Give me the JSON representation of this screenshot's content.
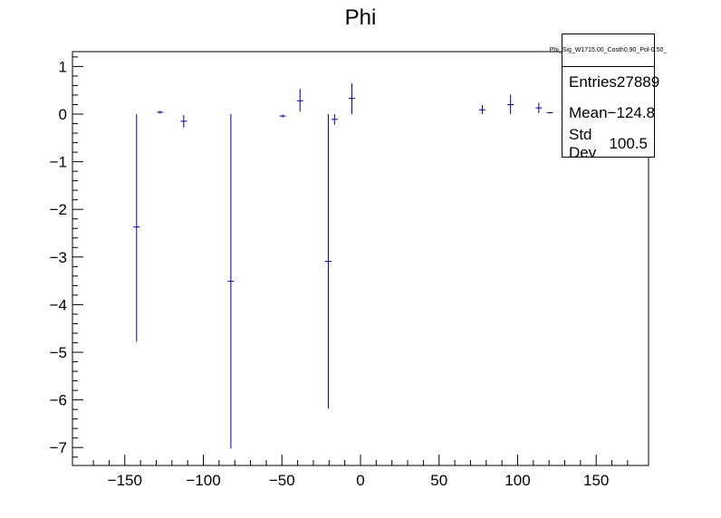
{
  "chart_data": {
    "type": "scatter",
    "title": "Phi",
    "xlabel": "",
    "ylabel": "",
    "xlim": [
      -180,
      180
    ],
    "ylim": [
      -7.4,
      1.35
    ],
    "x_ticks": [
      -150,
      -100,
      -50,
      0,
      50,
      100,
      150
    ],
    "x_tick_labels": [
      "−150",
      "−100",
      "−50",
      "0",
      "50",
      "100",
      "150"
    ],
    "y_ticks": [
      1,
      0,
      -1,
      -2,
      -3,
      -4,
      -5,
      -6,
      -7
    ],
    "y_tick_labels": [
      "1",
      "0",
      "−1",
      "−2",
      "−3",
      "−4",
      "−5",
      "−6",
      "−7"
    ],
    "color": "#000099",
    "points": [
      {
        "x": -142.5,
        "y": -2.37,
        "ylo": -4.78,
        "yhi": 0.0
      },
      {
        "x": -127.5,
        "y": 0.04,
        "ylo": 0.01,
        "yhi": 0.07
      },
      {
        "x": -112.5,
        "y": -0.15,
        "ylo": -0.28,
        "yhi": -0.02
      },
      {
        "x": -82.5,
        "y": -3.51,
        "ylo": -7.02,
        "yhi": 0.0
      },
      {
        "x": -49.5,
        "y": -0.04,
        "ylo": -0.07,
        "yhi": -0.01
      },
      {
        "x": -38.5,
        "y": 0.28,
        "ylo": 0.05,
        "yhi": 0.53
      },
      {
        "x": -20.5,
        "y": -3.09,
        "ylo": -6.18,
        "yhi": 0.0
      },
      {
        "x": -16.5,
        "y": -0.11,
        "ylo": -0.22,
        "yhi": 0.0
      },
      {
        "x": -5.5,
        "y": 0.33,
        "ylo": 0.0,
        "yhi": 0.65
      },
      {
        "x": 77.5,
        "y": 0.09,
        "ylo": 0.0,
        "yhi": 0.19
      },
      {
        "x": 95.5,
        "y": 0.2,
        "ylo": 0.0,
        "yhi": 0.41
      },
      {
        "x": 113.5,
        "y": 0.13,
        "ylo": 0.02,
        "yhi": 0.24
      },
      {
        "x": 120.5,
        "y": 0.03,
        "ylo": 0.02,
        "yhi": 0.04
      }
    ]
  },
  "stats": {
    "name": "Phi_Sig_W1715.00_Costh0.90_Pol-0.50_",
    "entries_label": "Entries",
    "entries_value": "27889",
    "mean_label": "Mean",
    "mean_value": "−124.8",
    "stddev_label": "Std Dev",
    "stddev_value": "100.5"
  }
}
